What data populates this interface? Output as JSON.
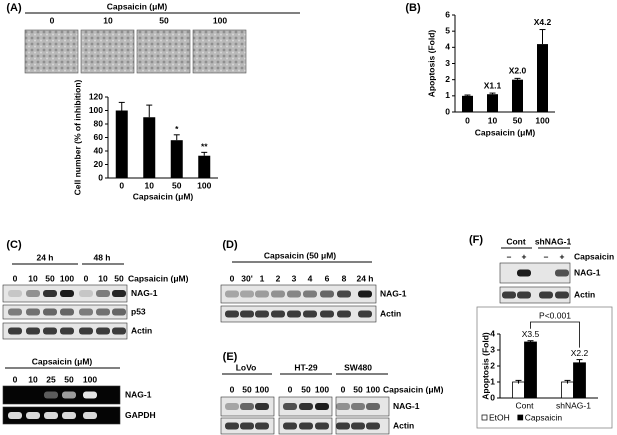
{
  "panel_labels": [
    "(A)",
    "(B)",
    "(C)",
    "(D)",
    "(E)",
    "(F)"
  ],
  "chart_data": [
    {
      "type": "bar",
      "categories": [
        "0",
        "10",
        "50",
        "100"
      ],
      "values": [
        100,
        90,
        56,
        33
      ],
      "errors": [
        12,
        18,
        8,
        5
      ],
      "annotations": [
        null,
        null,
        "*",
        "**"
      ],
      "color": "#000000",
      "ylim": [
        0,
        120
      ],
      "yticks": [
        0,
        20,
        40,
        60,
        80,
        100,
        120
      ],
      "xlabel": "Capsaicin (μM)",
      "ylabel": "Cell number (% of inhibition)"
    },
    {
      "type": "bar",
      "categories": [
        "0",
        "10",
        "50",
        "100"
      ],
      "values": [
        1.0,
        1.1,
        2.0,
        4.2
      ],
      "errors": [
        0.05,
        0.07,
        0.08,
        0.9
      ],
      "value_labels": [
        null,
        "X1.1",
        "X2.0",
        "X4.2"
      ],
      "color": "#000000",
      "ylim": [
        0,
        6
      ],
      "yticks": [
        0,
        1,
        2,
        3,
        4,
        5,
        6
      ],
      "xlabel": "Capsaicin (μM)",
      "ylabel": "Apoptosis (Fold)"
    },
    {
      "type": "grouped_bar",
      "categories": [
        "Cont",
        "shNAG-1"
      ],
      "series": [
        {
          "name": "EtOH",
          "color": "#ffffff",
          "values": [
            1.0,
            1.0
          ],
          "errors": [
            0.1,
            0.1
          ]
        },
        {
          "name": "Capsaicin",
          "color": "#000000",
          "values": [
            3.5,
            2.2
          ],
          "errors": [
            0.08,
            0.2
          ],
          "value_labels": [
            "X3.5",
            "X2.2"
          ]
        }
      ],
      "ylim": [
        0,
        4
      ],
      "yticks": [
        0,
        1,
        2,
        3,
        4
      ],
      "ylabel": "Apoptosis (Fold)",
      "annotation": "P<0.001",
      "legend": "bottom"
    }
  ],
  "panels": {
    "a_micrograph": {
      "title": "Capsaicin (μM)",
      "lanes": [
        "0",
        "10",
        "50",
        "100"
      ]
    },
    "c_protein": {
      "groups": [
        "24 h",
        "48 h"
      ],
      "treatment": "Capsaicin (μM)",
      "lanes": [
        "0",
        "10",
        "50",
        "100",
        "0",
        "10",
        "50"
      ],
      "rows": [
        "NAG-1",
        "p53",
        "Actin"
      ]
    },
    "c_rna": {
      "title": "Capsaicin (μM)",
      "lanes": [
        "0",
        "10",
        "25",
        "50",
        "100"
      ],
      "rows": [
        "NAG-1",
        "GAPDH"
      ]
    },
    "d": {
      "title": "Capsaicin (50 μM)",
      "lanes": [
        "0",
        "30'",
        "1",
        "2",
        "3",
        "4",
        "6",
        "8",
        "24 h"
      ],
      "rows": [
        "NAG-1",
        "Actin"
      ]
    },
    "e": {
      "groups": [
        "LoVo",
        "HT-29",
        "SW480"
      ],
      "lanes": [
        "0",
        "50",
        "100",
        "0",
        "50",
        "100",
        "0",
        "50",
        "100"
      ],
      "treatment": "Capsaicin (μM)",
      "rows": [
        "NAG-1",
        "Actin"
      ]
    },
    "f_blot": {
      "groups": [
        "Cont",
        "shNAG-1"
      ],
      "treatment": "Capsaicin",
      "signs": [
        "–",
        "+",
        "–",
        "+"
      ],
      "rows": [
        "NAG-1",
        "Actin"
      ]
    }
  }
}
